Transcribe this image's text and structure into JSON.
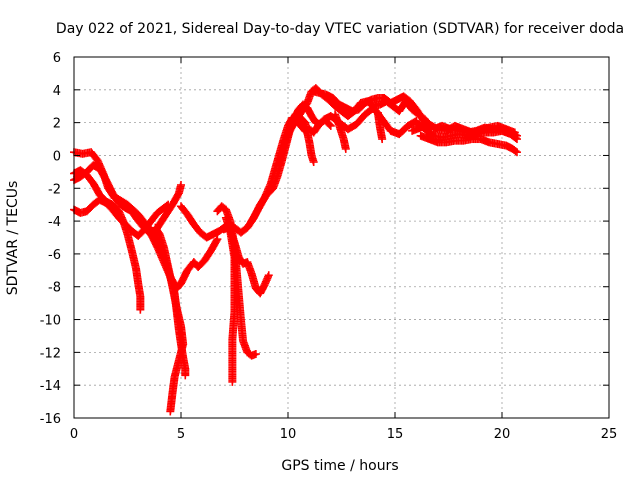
{
  "chart_data": {
    "type": "scatter",
    "title": "Day 022 of 2021, Sidereal Day-to-day VTEC variation (SDTVAR) for receiver doda",
    "xlabel": "GPS time / hours",
    "ylabel": "SDTVAR / TECUs",
    "xlim": [
      0,
      25
    ],
    "ylim": [
      -16,
      6
    ],
    "xticks": [
      0,
      5,
      10,
      15,
      20,
      25
    ],
    "yticks": [
      -16,
      -14,
      -12,
      -10,
      -8,
      -6,
      -4,
      -2,
      0,
      2,
      4,
      6
    ],
    "grid": true,
    "marker": "plus",
    "series_color": "#ff0000",
    "traces": [
      [
        [
          0.0,
          -3.3
        ],
        [
          0.3,
          -3.5
        ],
        [
          0.6,
          -3.4
        ],
        [
          0.9,
          -3.0
        ],
        [
          1.2,
          -2.7
        ],
        [
          1.5,
          -2.9
        ],
        [
          1.8,
          -3.3
        ],
        [
          2.1,
          -3.8
        ],
        [
          2.4,
          -4.2
        ],
        [
          2.7,
          -4.6
        ],
        [
          3.0,
          -4.9
        ],
        [
          3.3,
          -4.5
        ],
        [
          3.6,
          -4.0
        ],
        [
          3.9,
          -3.5
        ],
        [
          4.2,
          -3.2
        ],
        [
          4.4,
          -3.0
        ]
      ],
      [
        [
          0.0,
          0.2
        ],
        [
          0.4,
          0.1
        ],
        [
          0.8,
          0.2
        ],
        [
          1.1,
          -0.3
        ],
        [
          1.4,
          -1.2
        ],
        [
          1.6,
          -2.0
        ],
        [
          1.9,
          -2.6
        ],
        [
          2.3,
          -2.9
        ],
        [
          2.6,
          -3.2
        ],
        [
          2.9,
          -3.8
        ],
        [
          3.2,
          -4.3
        ],
        [
          3.5,
          -4.7
        ],
        [
          3.8,
          -4.6
        ],
        [
          4.0,
          -4.2
        ],
        [
          4.3,
          -3.6
        ],
        [
          4.6,
          -3.0
        ],
        [
          4.9,
          -2.3
        ],
        [
          5.0,
          -1.8
        ]
      ],
      [
        [
          0.0,
          -1.1
        ],
        [
          0.3,
          -0.9
        ],
        [
          0.6,
          -1.2
        ],
        [
          0.9,
          -1.7
        ],
        [
          1.2,
          -2.4
        ],
        [
          1.5,
          -2.8
        ],
        [
          1.8,
          -3.0
        ],
        [
          2.1,
          -3.4
        ],
        [
          2.3,
          -4.0
        ],
        [
          2.5,
          -4.8
        ],
        [
          2.7,
          -5.8
        ],
        [
          2.9,
          -6.9
        ],
        [
          3.0,
          -7.8
        ],
        [
          3.1,
          -8.6
        ],
        [
          3.1,
          -9.4
        ]
      ],
      [
        [
          0.0,
          -1.5
        ],
        [
          0.3,
          -1.3
        ],
        [
          0.6,
          -1.0
        ],
        [
          0.9,
          -0.6
        ],
        [
          1.2,
          -0.8
        ],
        [
          1.5,
          -1.5
        ],
        [
          1.8,
          -2.3
        ],
        [
          2.1,
          -2.9
        ],
        [
          2.4,
          -3.2
        ],
        [
          2.7,
          -3.4
        ],
        [
          3.0,
          -3.7
        ],
        [
          3.3,
          -4.2
        ],
        [
          3.6,
          -4.8
        ],
        [
          3.9,
          -5.6
        ],
        [
          4.2,
          -6.5
        ],
        [
          4.5,
          -7.4
        ],
        [
          4.8,
          -8.1
        ],
        [
          5.0,
          -7.8
        ],
        [
          5.3,
          -7.0
        ],
        [
          5.6,
          -6.5
        ],
        [
          5.8,
          -6.8
        ],
        [
          6.1,
          -6.4
        ],
        [
          6.4,
          -5.8
        ],
        [
          6.7,
          -5.1
        ]
      ],
      [
        [
          2.0,
          -2.6
        ],
        [
          2.5,
          -3.0
        ],
        [
          3.0,
          -3.6
        ],
        [
          3.3,
          -4.1
        ],
        [
          3.6,
          -4.6
        ],
        [
          3.9,
          -5.2
        ],
        [
          4.1,
          -5.8
        ],
        [
          4.3,
          -6.5
        ],
        [
          4.5,
          -7.4
        ],
        [
          4.7,
          -8.4
        ],
        [
          4.8,
          -9.5
        ],
        [
          4.9,
          -10.6
        ],
        [
          5.0,
          -11.5
        ],
        [
          5.1,
          -12.3
        ],
        [
          5.2,
          -13.0
        ],
        [
          5.2,
          -13.4
        ]
      ],
      [
        [
          3.8,
          -4.4
        ],
        [
          4.0,
          -4.8
        ],
        [
          4.2,
          -5.6
        ],
        [
          4.4,
          -6.8
        ],
        [
          4.6,
          -8.0
        ],
        [
          4.8,
          -9.3
        ],
        [
          5.0,
          -10.4
        ],
        [
          5.1,
          -11.5
        ],
        [
          4.9,
          -12.5
        ],
        [
          4.7,
          -13.5
        ],
        [
          4.6,
          -14.5
        ],
        [
          4.5,
          -15.6
        ]
      ],
      [
        [
          5.0,
          -3.1
        ],
        [
          5.3,
          -3.6
        ],
        [
          5.6,
          -4.2
        ],
        [
          5.9,
          -4.7
        ],
        [
          6.2,
          -5.0
        ],
        [
          6.5,
          -4.8
        ],
        [
          6.8,
          -4.6
        ],
        [
          7.1,
          -4.3
        ],
        [
          7.3,
          -4.6
        ],
        [
          7.5,
          -5.3
        ],
        [
          7.7,
          -6.2
        ],
        [
          7.9,
          -6.6
        ],
        [
          8.1,
          -6.5
        ],
        [
          8.3,
          -7.2
        ],
        [
          8.5,
          -8.1
        ],
        [
          8.7,
          -8.4
        ],
        [
          8.9,
          -7.9
        ],
        [
          9.1,
          -7.3
        ]
      ],
      [
        [
          6.7,
          -3.4
        ],
        [
          6.9,
          -3.1
        ],
        [
          7.1,
          -3.3
        ],
        [
          7.3,
          -4.0
        ],
        [
          7.5,
          -5.5
        ],
        [
          7.6,
          -7.0
        ],
        [
          7.7,
          -8.5
        ],
        [
          7.8,
          -10.0
        ],
        [
          7.9,
          -11.3
        ],
        [
          8.1,
          -12.0
        ],
        [
          8.3,
          -12.2
        ],
        [
          8.5,
          -12.1
        ]
      ],
      [
        [
          7.1,
          -3.8
        ],
        [
          7.3,
          -4.6
        ],
        [
          7.5,
          -6.2
        ],
        [
          7.5,
          -7.8
        ],
        [
          7.5,
          -9.5
        ],
        [
          7.4,
          -11.2
        ],
        [
          7.4,
          -12.5
        ],
        [
          7.4,
          -13.8
        ]
      ],
      [
        [
          7.0,
          -4.5
        ],
        [
          7.4,
          -4.3
        ],
        [
          7.8,
          -4.7
        ],
        [
          8.1,
          -4.4
        ],
        [
          8.4,
          -3.8
        ],
        [
          8.7,
          -3.0
        ],
        [
          9.0,
          -2.4
        ],
        [
          9.3,
          -2.0
        ],
        [
          9.5,
          -1.3
        ],
        [
          9.7,
          -0.4
        ],
        [
          9.9,
          0.6
        ],
        [
          10.1,
          1.6
        ],
        [
          10.3,
          2.3
        ],
        [
          10.5,
          2.8
        ],
        [
          10.7,
          3.1
        ],
        [
          10.9,
          2.9
        ],
        [
          11.1,
          2.4
        ],
        [
          11.3,
          2.0
        ],
        [
          11.5,
          1.9
        ],
        [
          11.7,
          2.2
        ],
        [
          12.0,
          1.8
        ]
      ],
      [
        [
          8.3,
          -4.0
        ],
        [
          8.6,
          -3.3
        ],
        [
          8.9,
          -2.6
        ],
        [
          9.2,
          -1.7
        ],
        [
          9.4,
          -0.8
        ],
        [
          9.6,
          0.1
        ],
        [
          9.8,
          1.0
        ],
        [
          10.0,
          1.8
        ],
        [
          10.2,
          2.3
        ],
        [
          10.4,
          2.1
        ],
        [
          10.6,
          1.8
        ],
        [
          10.8,
          1.5
        ],
        [
          11.0,
          1.6
        ],
        [
          11.2,
          1.4
        ],
        [
          11.4,
          1.8
        ],
        [
          11.7,
          2.2
        ],
        [
          12.0,
          2.4
        ],
        [
          12.4,
          2.0
        ],
        [
          12.8,
          1.6
        ],
        [
          13.2,
          1.9
        ],
        [
          13.6,
          2.5
        ],
        [
          14.0,
          2.9
        ],
        [
          14.4,
          2.2
        ],
        [
          14.8,
          1.5
        ],
        [
          15.2,
          1.3
        ],
        [
          15.6,
          1.8
        ],
        [
          16.0,
          2.1
        ]
      ],
      [
        [
          9.6,
          -0.5
        ],
        [
          9.8,
          0.5
        ],
        [
          10.0,
          1.3
        ],
        [
          10.3,
          2.0
        ],
        [
          10.6,
          2.6
        ],
        [
          10.9,
          3.2
        ],
        [
          11.1,
          3.9
        ],
        [
          11.3,
          4.1
        ],
        [
          11.6,
          3.7
        ],
        [
          11.9,
          3.4
        ],
        [
          12.2,
          3.0
        ],
        [
          12.5,
          2.7
        ],
        [
          12.8,
          2.4
        ],
        [
          13.1,
          2.7
        ],
        [
          13.4,
          3.2
        ],
        [
          13.7,
          3.3
        ],
        [
          14.0,
          3.0
        ],
        [
          14.3,
          3.1
        ],
        [
          14.6,
          3.3
        ],
        [
          14.9,
          3.0
        ],
        [
          15.2,
          2.7
        ],
        [
          15.5,
          3.3
        ],
        [
          15.8,
          2.8
        ],
        [
          16.1,
          2.5
        ],
        [
          16.4,
          2.2
        ],
        [
          16.7,
          1.7
        ]
      ],
      [
        [
          10.5,
          2.4
        ],
        [
          10.8,
          2.0
        ],
        [
          11.0,
          0.8
        ],
        [
          11.1,
          0.0
        ],
        [
          11.2,
          -0.4
        ]
      ],
      [
        [
          11.2,
          3.9
        ],
        [
          11.5,
          3.8
        ],
        [
          11.8,
          3.7
        ],
        [
          12.1,
          3.5
        ],
        [
          12.4,
          3.1
        ],
        [
          12.7,
          2.9
        ],
        [
          13.0,
          2.7
        ],
        [
          13.3,
          2.8
        ],
        [
          13.6,
          3.2
        ],
        [
          13.9,
          3.4
        ],
        [
          14.2,
          3.5
        ],
        [
          14.5,
          3.5
        ],
        [
          14.8,
          3.2
        ],
        [
          15.1,
          3.4
        ],
        [
          15.4,
          3.6
        ],
        [
          15.7,
          3.3
        ],
        [
          16.0,
          2.8
        ],
        [
          16.3,
          2.2
        ],
        [
          16.6,
          1.6
        ]
      ],
      [
        [
          12.2,
          2.5
        ],
        [
          12.4,
          1.8
        ],
        [
          12.6,
          1.0
        ],
        [
          12.7,
          0.4
        ]
      ],
      [
        [
          14.2,
          2.6
        ],
        [
          14.3,
          1.7
        ],
        [
          14.4,
          1.0
        ]
      ],
      [
        [
          16.0,
          2.0
        ],
        [
          16.4,
          1.6
        ],
        [
          16.8,
          1.2
        ],
        [
          17.2,
          1.1
        ],
        [
          17.6,
          1.2
        ],
        [
          18.0,
          1.3
        ],
        [
          18.4,
          1.2
        ],
        [
          18.8,
          1.3
        ],
        [
          19.2,
          1.4
        ],
        [
          19.6,
          1.4
        ],
        [
          20.0,
          1.5
        ],
        [
          20.4,
          1.4
        ],
        [
          20.7,
          1.2
        ]
      ],
      [
        [
          16.2,
          1.2
        ],
        [
          16.6,
          1.0
        ],
        [
          17.0,
          0.8
        ],
        [
          17.4,
          0.8
        ],
        [
          17.8,
          0.9
        ],
        [
          18.2,
          0.9
        ],
        [
          18.6,
          1.0
        ],
        [
          19.0,
          1.0
        ],
        [
          19.4,
          0.8
        ],
        [
          19.8,
          0.7
        ],
        [
          20.2,
          0.6
        ],
        [
          20.5,
          0.4
        ],
        [
          20.7,
          0.2
        ]
      ],
      [
        [
          16.8,
          1.6
        ],
        [
          17.2,
          1.8
        ],
        [
          17.6,
          1.6
        ],
        [
          18.0,
          1.5
        ],
        [
          18.4,
          1.4
        ],
        [
          18.8,
          1.5
        ],
        [
          19.2,
          1.7
        ],
        [
          19.6,
          1.6
        ],
        [
          20.0,
          1.5
        ],
        [
          20.4,
          1.3
        ],
        [
          20.7,
          1.0
        ]
      ],
      [
        [
          15.8,
          1.5
        ],
        [
          16.2,
          1.7
        ],
        [
          16.6,
          1.9
        ],
        [
          17.0,
          1.6
        ],
        [
          17.4,
          1.5
        ],
        [
          17.8,
          1.8
        ],
        [
          18.2,
          1.6
        ],
        [
          18.6,
          1.4
        ],
        [
          19.0,
          1.5
        ],
        [
          19.4,
          1.7
        ],
        [
          19.8,
          1.8
        ],
        [
          20.2,
          1.6
        ],
        [
          20.6,
          1.4
        ]
      ]
    ]
  }
}
